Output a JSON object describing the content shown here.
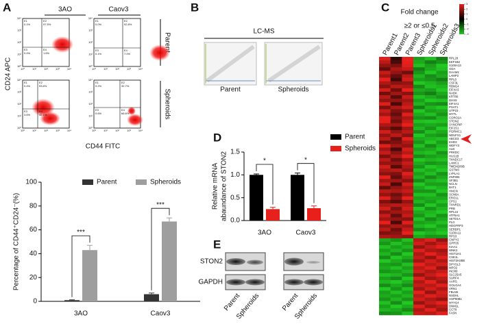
{
  "panel_labels": [
    "A",
    "B",
    "C",
    "D",
    "E"
  ],
  "flow": {
    "columns": [
      "3AO",
      "Caov3"
    ],
    "rows": [
      "Parent",
      "Spheroids"
    ],
    "y_label": "CD24 APC",
    "x_label": "CD44 FITC",
    "axis_ticks": [
      "10⁰",
      "10¹",
      "10²",
      "10³",
      "10⁴"
    ],
    "quadrant_names": [
      "E1",
      "E2",
      "E3",
      "E4"
    ],
    "plots": [
      {
        "quadrant_labels": [
          "0.1%",
          "97.5%",
          "0.4%",
          "1.6%"
        ]
      },
      {
        "quadrant_labels": [
          "0.0%",
          "92.8%",
          "0.1%",
          "7.0%"
        ]
      },
      {
        "quadrant_labels": [
          "0.4%",
          "53.6%",
          "3.6%",
          "42.1%"
        ]
      },
      {
        "quadrant_labels": [
          "0.2%",
          "32.7%",
          "0.6%",
          "66.6%"
        ]
      }
    ]
  },
  "lcms": {
    "title": "LC-MS",
    "labels": [
      "Parent",
      "Spheroids"
    ]
  },
  "blot": {
    "proteins": [
      "STON2",
      "GAPDH"
    ],
    "lanes": [
      "Parent",
      "Spheroids",
      "Parent",
      "Spheroids"
    ]
  },
  "chart_data": [
    {
      "type": "bar",
      "y_label": "Percentage of CD44⁺CD24⁻(%)",
      "categories": [
        "3AO",
        "Caov3"
      ],
      "series": [
        {
          "name": "Parent",
          "color": "#333333",
          "values": [
            1,
            6
          ],
          "errors": [
            0.3,
            1
          ]
        },
        {
          "name": "Spheroids",
          "color": "#9e9e9e",
          "values": [
            43,
            67
          ],
          "errors": [
            4,
            3
          ]
        }
      ],
      "annotations": [
        "***",
        "***"
      ],
      "ylim": [
        0,
        100
      ],
      "yticks": [
        0,
        20,
        40,
        60,
        80,
        100
      ]
    },
    {
      "type": "bar",
      "y_label": [
        "Relative mRNA",
        "abaundance of STON2"
      ],
      "categories": [
        "3AO",
        "Caov3"
      ],
      "series": [
        {
          "name": "Parent",
          "color": "#000000",
          "values": [
            1.0,
            1.0
          ],
          "errors": [
            0.02,
            0.04
          ]
        },
        {
          "name": "Spheroids",
          "color": "#e8201c",
          "values": [
            0.25,
            0.27
          ],
          "errors": [
            0.04,
            0.05
          ]
        }
      ],
      "annotations": [
        "*",
        "*"
      ],
      "ylim": [
        0,
        1.5
      ],
      "yticks": [
        {
          "value": 0,
          "label": "0.0"
        },
        0.5,
        {
          "value": 1,
          "label": "1.0"
        },
        1.5
      ]
    },
    {
      "type": "heatmap",
      "title": "Fold change",
      "subtitle": "≥2 or ≤0.5",
      "columns": [
        "Parent1",
        "Parent2",
        "Parent3",
        "Spheroids1",
        "Spheroids2",
        "Spheroids3"
      ],
      "rows": [
        "RPL28",
        "EEF1B2",
        "S100A13",
        "GDA",
        "DAAM1",
        "LAMP2",
        "RPL8",
        "CSF3L",
        "RBM14",
        "EIF4A3",
        "NADK",
        "KRT80",
        "DHX9",
        "EIF4A1",
        "PSAT1",
        "UTP23",
        "MYTL",
        "CORO2A",
        "STON2",
        "SYNCRIP",
        "EIF2S1",
        "PGRMC1",
        "NDUFS1",
        "ABCD3",
        "EHD3",
        "WDFY3",
        "ALB",
        "PRKDC",
        "HUS1B",
        "TXNDC17",
        "LAMC1",
        "TMEM209B",
        "GSTM3",
        "LYPLA1",
        "ZNF806",
        "SF3B1",
        "NCLN",
        "BAT1",
        "HMCN",
        "SCN8A",
        "ERO1L",
        "CPS1",
        "TXNRD1",
        "PRB",
        "RPL24",
        "ATP5A1",
        "SETD1A",
        "PLG",
        "HDGFRP3",
        "SERBP1",
        "S100A11",
        "RPS3",
        "CNPY2",
        "GPR35",
        "KIAA1",
        "WNK2",
        "HIST1H1",
        "CSE1L",
        "HIST2H2BE",
        "DPYSL3",
        "MPO2",
        "INO80",
        "SLC25A5",
        "SURF4",
        "AARS",
        "GOLGA4",
        "VRN1",
        "FBLN5",
        "NSDHL",
        "HSP90B1",
        "MYH14",
        "DNM1L",
        "CCT8",
        "FASN"
      ],
      "values": [
        [
          1.8,
          0.4,
          2.2,
          -1.5,
          -1.8,
          -1.2
        ],
        [
          1.5,
          0.6,
          2.0,
          -1.6,
          -1.2,
          -1.4
        ],
        [
          1.2,
          1.0,
          1.8,
          -1.8,
          -1.5,
          -2.0
        ],
        [
          0.8,
          1.4,
          1.6,
          -1.2,
          -1.6,
          -1.8
        ],
        [
          1.6,
          1.2,
          0.9,
          -1.4,
          -1.9,
          -1.5
        ],
        [
          1.3,
          0.8,
          1.5,
          -1.7,
          -1.3,
          -1.6
        ],
        [
          2.0,
          0.5,
          1.7,
          -1.5,
          -1.4,
          -1.2
        ],
        [
          1.4,
          1.1,
          1.2,
          -1.9,
          -1.7,
          -1.5
        ],
        [
          1.1,
          1.5,
          1.4,
          -1.3,
          -1.8,
          -1.7
        ],
        [
          1.7,
          0.9,
          1.9,
          -1.6,
          -1.5,
          -1.9
        ],
        [
          0.9,
          1.3,
          1.1,
          -1.4,
          -1.2,
          -1.6
        ],
        [
          1.5,
          0.7,
          1.6,
          -1.8,
          -1.6,
          -1.4
        ],
        [
          1.2,
          1.2,
          1.3,
          -1.5,
          -1.9,
          -1.8
        ],
        [
          1.8,
          0.6,
          1.5,
          -1.7,
          -1.4,
          -1.3
        ],
        [
          1.0,
          1.4,
          1.7,
          -1.2,
          -1.7,
          -1.9
        ],
        [
          1.6,
          1.0,
          1.2,
          -1.9,
          -1.5,
          -1.6
        ],
        [
          1.3,
          0.8,
          1.8,
          -1.6,
          -1.8,
          -1.4
        ],
        [
          1.9,
          1.1,
          1.4,
          -1.4,
          -1.3,
          -1.7
        ],
        [
          2.1,
          0.9,
          1.6,
          -1.8,
          -1.9,
          -1.8
        ],
        [
          1.4,
          1.3,
          1.9,
          -1.5,
          -1.6,
          -1.5
        ],
        [
          1.1,
          0.7,
          1.3,
          -1.7,
          -1.4,
          -1.9
        ],
        [
          1.7,
          1.2,
          1.5,
          -1.3,
          -1.8,
          -1.6
        ],
        [
          1.2,
          1.5,
          1.1,
          -1.9,
          -1.5,
          -1.4
        ],
        [
          1.5,
          0.8,
          1.8,
          -1.6,
          -1.7,
          -1.8
        ],
        [
          0.9,
          1.0,
          1.4,
          -1.4,
          -1.9,
          -1.5
        ],
        [
          1.8,
          1.3,
          1.2,
          -1.8,
          -1.3,
          -1.7
        ],
        [
          1.3,
          0.6,
          1.7,
          -1.5,
          -1.6,
          -1.9
        ],
        [
          1.6,
          1.1,
          1.5,
          -1.7,
          -1.8,
          -1.4
        ],
        [
          1.0,
          1.4,
          1.9,
          -1.3,
          -1.5,
          -1.6
        ],
        [
          1.5,
          0.9,
          1.3,
          -1.9,
          -1.7,
          -1.8
        ],
        [
          1.2,
          1.2,
          1.6,
          -1.6,
          -1.4,
          -1.5
        ],
        [
          1.7,
          0.7,
          1.4,
          -1.4,
          -1.9,
          -1.7
        ],
        [
          1.4,
          1.5,
          1.2,
          -1.8,
          -1.6,
          -1.9
        ],
        [
          1.1,
          1.0,
          1.8,
          -1.5,
          -1.8,
          -1.4
        ],
        [
          1.9,
          0.8,
          1.5,
          -1.7,
          -1.3,
          -1.6
        ],
        [
          1.3,
          1.3,
          1.1,
          -1.3,
          -1.7,
          -1.8
        ],
        [
          1.6,
          0.6,
          1.7,
          -1.9,
          -1.5,
          -1.5
        ],
        [
          0.8,
          1.2,
          1.4,
          -1.6,
          -1.9,
          -1.7
        ],
        [
          1.5,
          1.4,
          1.6,
          -1.4,
          -1.4,
          -1.9
        ],
        [
          1.2,
          0.9,
          1.3,
          -1.8,
          -1.8,
          -1.4
        ],
        [
          1.8,
          1.1,
          1.9,
          -1.5,
          -1.6,
          -1.6
        ],
        [
          1.0,
          0.7,
          1.2,
          -1.7,
          -1.5,
          -1.8
        ],
        [
          1.4,
          1.5,
          1.5,
          -1.3,
          -1.9,
          -1.5
        ],
        [
          1.7,
          1.0,
          1.7,
          -1.9,
          -1.4,
          -1.7
        ],
        [
          1.1,
          1.3,
          1.4,
          -1.6,
          -1.7,
          -1.9
        ],
        [
          1.6,
          0.8,
          1.6,
          -1.4,
          -1.8,
          -1.4
        ],
        [
          1.3,
          1.2,
          1.1,
          -1.8,
          -1.3,
          -1.6
        ],
        [
          1.9,
          0.6,
          1.8,
          -1.5,
          -1.6,
          -1.8
        ],
        [
          1.2,
          1.4,
          1.3,
          -1.7,
          -1.9,
          -1.5
        ],
        [
          1.5,
          0.9,
          1.6,
          -1.3,
          -1.5,
          -1.7
        ],
        [
          1.0,
          1.1,
          1.9,
          -1.9,
          -1.7,
          -1.9
        ],
        [
          1.4,
          1.3,
          1.2,
          -1.6,
          -1.4,
          -1.4
        ],
        [
          -1.6,
          -1.4,
          -1.8,
          1.5,
          1.8,
          1.2
        ],
        [
          -1.4,
          -1.8,
          -1.5,
          1.7,
          1.3,
          1.6
        ],
        [
          -1.8,
          -1.5,
          -1.7,
          1.2,
          1.6,
          1.9
        ],
        [
          -1.5,
          -1.7,
          -1.4,
          1.8,
          1.4,
          1.3
        ],
        [
          -1.7,
          -1.3,
          -1.9,
          1.4,
          1.9,
          1.5
        ],
        [
          -1.3,
          -1.9,
          -1.6,
          1.6,
          1.2,
          1.8
        ],
        [
          -1.9,
          -1.6,
          -1.3,
          1.3,
          1.7,
          1.4
        ],
        [
          -1.5,
          -1.4,
          -1.8,
          1.9,
          1.5,
          1.7
        ],
        [
          -1.6,
          -1.8,
          -1.5,
          1.5,
          1.8,
          1.2
        ],
        [
          -1.4,
          -1.5,
          -1.7,
          1.7,
          1.4,
          1.6
        ],
        [
          -1.8,
          -1.7,
          -1.4,
          1.2,
          1.6,
          1.9
        ],
        [
          -1.5,
          -1.3,
          -1.9,
          1.8,
          1.3,
          1.5
        ],
        [
          -1.7,
          -1.9,
          -1.6,
          1.4,
          1.9,
          1.3
        ],
        [
          -1.3,
          -1.6,
          -1.3,
          1.6,
          1.5,
          1.8
        ],
        [
          -1.9,
          -1.4,
          -1.8,
          1.3,
          1.7,
          1.4
        ],
        [
          -1.5,
          -1.8,
          -1.5,
          1.9,
          1.2,
          1.7
        ],
        [
          -1.6,
          -1.5,
          -1.7,
          1.5,
          1.8,
          1.6
        ],
        [
          -1.4,
          -1.7,
          -1.4,
          1.7,
          1.4,
          1.2
        ],
        [
          -1.8,
          -1.3,
          -1.9,
          1.2,
          1.6,
          1.9
        ],
        [
          -1.5,
          -1.9,
          -1.6,
          1.8,
          1.3,
          1.5
        ],
        [
          -1.7,
          -1.6,
          -1.3,
          1.4,
          1.9,
          1.3
        ],
        [
          -1.3,
          -1.4,
          -1.8,
          1.6,
          1.5,
          1.8
        ]
      ],
      "clim": [
        -3,
        3
      ],
      "cticks": [
        3,
        2,
        1,
        0,
        -1,
        -2,
        -3
      ]
    }
  ]
}
